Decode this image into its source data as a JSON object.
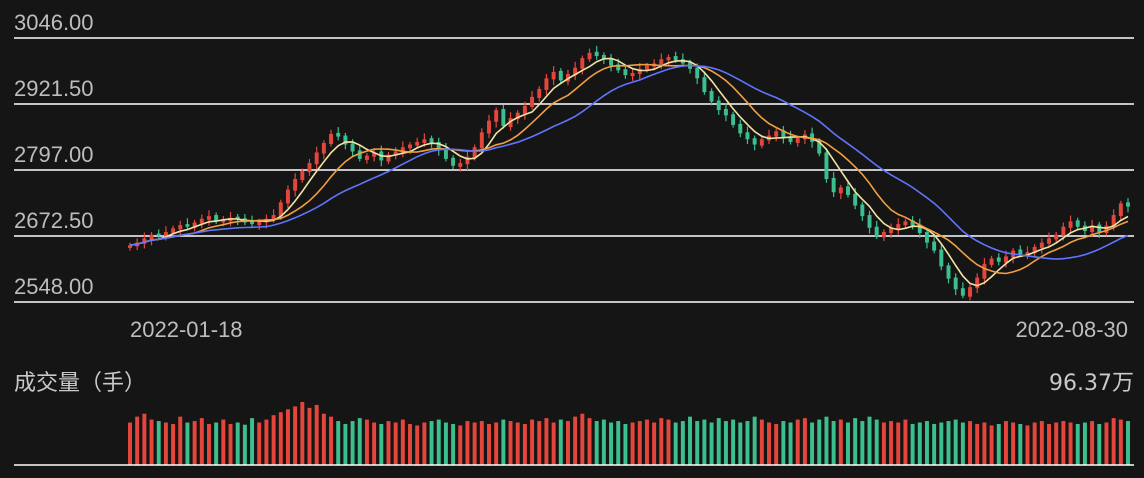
{
  "chart_data": [
    {
      "type": "candlestick",
      "title": "",
      "y_ticks": [
        "3046.00",
        "2921.50",
        "2797.00",
        "2672.50",
        "2548.00"
      ],
      "ylim": [
        2548.0,
        3046.0
      ],
      "x_labels": [
        "2022-01-18",
        "2022-08-30"
      ],
      "grid": true,
      "colors": {
        "up": "#e5463c",
        "down": "#3cbf8e",
        "ma5": "#f3e3a2",
        "ma10": "#f0a040",
        "ma20": "#5f75ff"
      },
      "series": [
        {
          "name": "close",
          "values": [
            2655,
            2660,
            2668,
            2675,
            2673,
            2680,
            2687,
            2693,
            2690,
            2698,
            2705,
            2710,
            2700,
            2702,
            2707,
            2704,
            2698,
            2695,
            2700,
            2705,
            2712,
            2736,
            2760,
            2780,
            2795,
            2810,
            2830,
            2848,
            2865,
            2860,
            2845,
            2832,
            2818,
            2824,
            2830,
            2815,
            2826,
            2832,
            2840,
            2845,
            2850,
            2855,
            2848,
            2835,
            2818,
            2805,
            2810,
            2822,
            2840,
            2868,
            2890,
            2910,
            2880,
            2895,
            2905,
            2918,
            2935,
            2950,
            2970,
            2982,
            2966,
            2978,
            2990,
            3008,
            3018,
            3012,
            3006,
            2994,
            2985,
            2976,
            2980,
            2988,
            2994,
            2998,
            3006,
            3010,
            3004,
            2998,
            2988,
            2970,
            2944,
            2926,
            2910,
            2900,
            2882,
            2866,
            2855,
            2845,
            2855,
            2862,
            2870,
            2858,
            2850,
            2857,
            2864,
            2850,
            2828,
            2780,
            2755,
            2764,
            2750,
            2730,
            2710,
            2688,
            2672,
            2680,
            2688,
            2695,
            2700,
            2692,
            2678,
            2660,
            2645,
            2615,
            2592,
            2572,
            2560,
            2576,
            2594,
            2620,
            2630,
            2624,
            2634,
            2645,
            2638,
            2642,
            2652,
            2660,
            2668,
            2675,
            2690,
            2700,
            2690,
            2682,
            2692,
            2680,
            2692,
            2712,
            2734,
            2728
          ]
        },
        {
          "name": "volume",
          "values": [
            58,
            66,
            70,
            62,
            60,
            58,
            56,
            66,
            58,
            60,
            64,
            56,
            58,
            62,
            56,
            58,
            55,
            64,
            58,
            62,
            68,
            72,
            76,
            80,
            86,
            78,
            82,
            70,
            66,
            60,
            56,
            60,
            64,
            62,
            58,
            56,
            60,
            58,
            62,
            56,
            54,
            58,
            60,
            62,
            58,
            56,
            54,
            60,
            58,
            60,
            56,
            58,
            62,
            60,
            58,
            56,
            62,
            60,
            64,
            58,
            62,
            60,
            66,
            70,
            64,
            60,
            62,
            58,
            60,
            56,
            58,
            60,
            62,
            58,
            64,
            62,
            58,
            60,
            66,
            60,
            62,
            58,
            64,
            60,
            62,
            58,
            60,
            66,
            62,
            58,
            56,
            60,
            58,
            62,
            64,
            58,
            62,
            66,
            60,
            62,
            58,
            64,
            60,
            66,
            62,
            58,
            60,
            58,
            62,
            56,
            58,
            60,
            56,
            58,
            60,
            62,
            58,
            60,
            56,
            58,
            54,
            56,
            60,
            58,
            56,
            54,
            58,
            60,
            56,
            58,
            60,
            58,
            56,
            58,
            60,
            56,
            58,
            64,
            62,
            60
          ]
        }
      ]
    },
    {
      "type": "bar",
      "title": "成交量（手）",
      "ymax_label": "96.37万",
      "note": "volume bars colored by the same up/down day as the candlestick above"
    }
  ]
}
